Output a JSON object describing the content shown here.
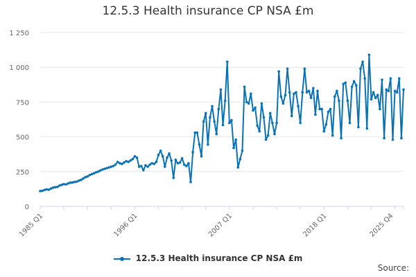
{
  "chart_data": {
    "type": "line",
    "title": "12.5.3 Health insurance CP NSA £m",
    "xlabel": "",
    "ylabel": "",
    "ylim": [
      0,
      1250
    ],
    "y_ticks": [
      0,
      250,
      500,
      750,
      1000,
      1250
    ],
    "y_tick_labels": [
      "0",
      "250",
      "500",
      "750",
      "1 000",
      "1 250"
    ],
    "x_tick_labels": [
      {
        "label": "1985 Q1",
        "index": 0
      },
      {
        "label": "1996 Q1",
        "index": 44
      },
      {
        "label": "2007 Q1",
        "index": 88
      },
      {
        "label": "2018 Q1",
        "index": 132
      },
      {
        "label": "2025 Q4",
        "index": 163
      }
    ],
    "legend_position": "bottom-center",
    "grid": true,
    "series": [
      {
        "name": "12.5.3 Health insurance CP NSA £m",
        "color": "#0a71b4",
        "values": [
          110,
          112,
          118,
          122,
          120,
          128,
          135,
          138,
          140,
          150,
          155,
          160,
          158,
          165,
          170,
          172,
          175,
          178,
          185,
          190,
          200,
          210,
          215,
          225,
          232,
          238,
          245,
          250,
          258,
          265,
          270,
          275,
          280,
          285,
          290,
          300,
          320,
          310,
          305,
          315,
          325,
          320,
          330,
          340,
          360,
          350,
          285,
          290,
          260,
          295,
          285,
          300,
          310,
          305,
          320,
          370,
          400,
          360,
          285,
          350,
          380,
          330,
          205,
          335,
          310,
          315,
          345,
          300,
          290,
          310,
          175,
          390,
          530,
          530,
          445,
          360,
          610,
          670,
          445,
          640,
          720,
          610,
          520,
          700,
          840,
          585,
          760,
          1040,
          600,
          620,
          420,
          480,
          280,
          340,
          400,
          860,
          750,
          740,
          810,
          690,
          710,
          580,
          540,
          740,
          640,
          480,
          510,
          670,
          600,
          520,
          600,
          970,
          790,
          740,
          800,
          990,
          820,
          650,
          810,
          820,
          720,
          600,
          820,
          990,
          820,
          830,
          780,
          850,
          660,
          830,
          700,
          700,
          540,
          590,
          680,
          700,
          510,
          790,
          830,
          760,
          490,
          880,
          890,
          760,
          600,
          860,
          900,
          870,
          570,
          990,
          1040,
          920,
          560,
          1090,
          770,
          820,
          780,
          800,
          700,
          910,
          490,
          840,
          830,
          920,
          480,
          830,
          820,
          920,
          490,
          840
        ]
      }
    ]
  },
  "legend": {
    "label": "12.5.3 Health insurance CP NSA £m"
  },
  "footer": {
    "source": "Source:"
  },
  "colors": {
    "series": "#0a71b4",
    "grid": "#e6e6e6",
    "axis": "#ccd6eb"
  }
}
